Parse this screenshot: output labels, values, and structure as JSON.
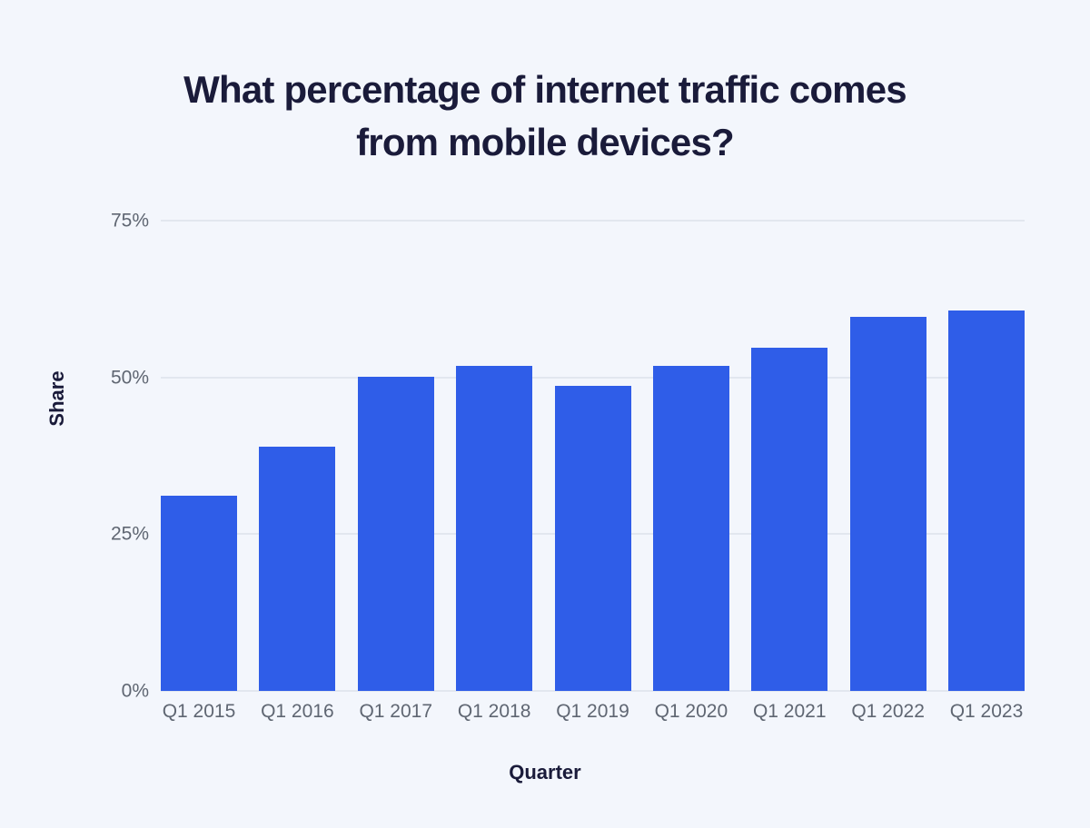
{
  "chart_data": {
    "type": "bar",
    "title": "What percentage of internet traffic comes from mobile devices?",
    "xlabel": "Quarter",
    "ylabel": "Share",
    "categories": [
      "Q1 2015",
      "Q1 2016",
      "Q1 2017",
      "Q1 2018",
      "Q1 2019",
      "Q1 2020",
      "Q1 2021",
      "Q1 2022",
      "Q1 2023"
    ],
    "values": [
      31.2,
      39.0,
      50.1,
      51.8,
      48.7,
      51.9,
      54.8,
      59.7,
      60.7
    ],
    "unit": "%",
    "ylim": [
      0,
      75
    ],
    "yticks": [
      0,
      25,
      50,
      75
    ],
    "ytick_labels": [
      "0%",
      "25%",
      "50%",
      "75%"
    ],
    "grid": "horizontal-only",
    "legend": false,
    "colors": {
      "bar": "#2f5de8",
      "background": "#f3f6fc",
      "grid": "#e2e7ef",
      "tick_label": "#5f6672",
      "dark_text": "#1a1b3a"
    }
  }
}
